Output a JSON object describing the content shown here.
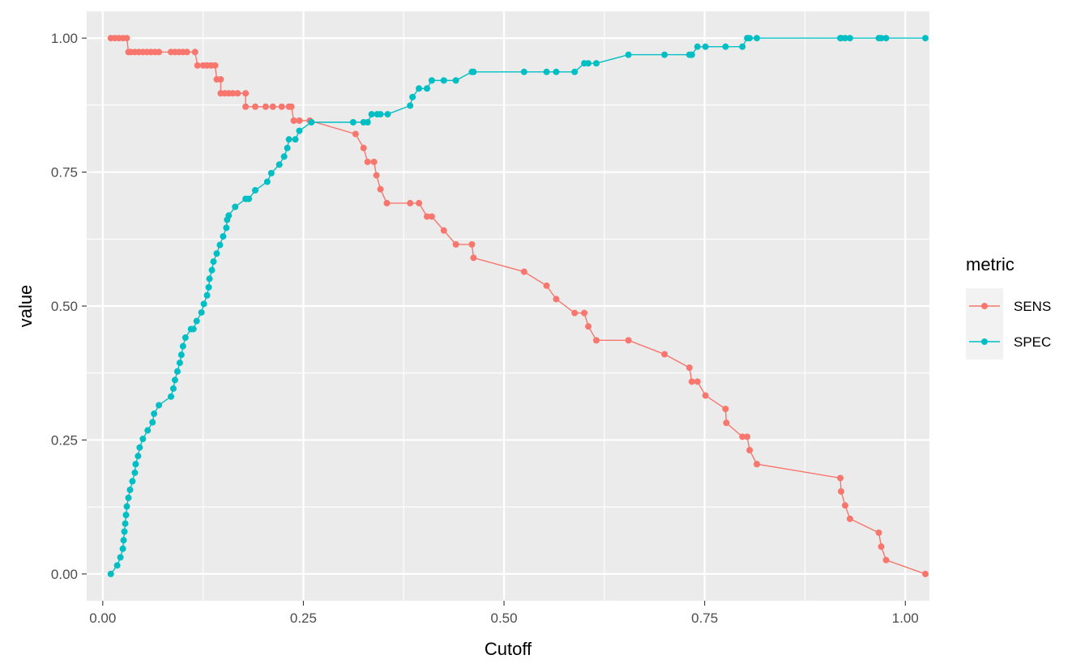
{
  "chart_data": {
    "type": "line",
    "xlabel": "Cutoff",
    "ylabel": "value",
    "xlim": [
      -0.02,
      1.03
    ],
    "ylim": [
      -0.05,
      1.05
    ],
    "x_ticks": [
      0.0,
      0.25,
      0.5,
      0.75,
      1.0
    ],
    "x_tick_labels": [
      "0.00",
      "0.25",
      "0.50",
      "0.75",
      "1.00"
    ],
    "y_ticks": [
      0.0,
      0.25,
      0.5,
      0.75,
      1.0
    ],
    "y_tick_labels": [
      "0.00",
      "0.25",
      "0.50",
      "0.75",
      "1.00"
    ],
    "grid": true,
    "legend": {
      "title": "metric",
      "position": "right"
    },
    "series": [
      {
        "name": "SENS",
        "color": "#F8766D",
        "points": [
          [
            0.01,
            1.0
          ],
          [
            0.015,
            1.0
          ],
          [
            0.02,
            1.0
          ],
          [
            0.025,
            1.0
          ],
          [
            0.03,
            1.0
          ],
          [
            0.032,
            0.974
          ],
          [
            0.035,
            0.974
          ],
          [
            0.04,
            0.974
          ],
          [
            0.045,
            0.974
          ],
          [
            0.05,
            0.974
          ],
          [
            0.055,
            0.974
          ],
          [
            0.06,
            0.974
          ],
          [
            0.065,
            0.974
          ],
          [
            0.07,
            0.974
          ],
          [
            0.085,
            0.974
          ],
          [
            0.09,
            0.974
          ],
          [
            0.095,
            0.974
          ],
          [
            0.1,
            0.974
          ],
          [
            0.105,
            0.974
          ],
          [
            0.115,
            0.974
          ],
          [
            0.118,
            0.949
          ],
          [
            0.125,
            0.949
          ],
          [
            0.13,
            0.949
          ],
          [
            0.135,
            0.949
          ],
          [
            0.14,
            0.949
          ],
          [
            0.142,
            0.923
          ],
          [
            0.147,
            0.923
          ],
          [
            0.147,
            0.897
          ],
          [
            0.152,
            0.897
          ],
          [
            0.157,
            0.897
          ],
          [
            0.162,
            0.897
          ],
          [
            0.168,
            0.897
          ],
          [
            0.178,
            0.897
          ],
          [
            0.178,
            0.872
          ],
          [
            0.19,
            0.872
          ],
          [
            0.203,
            0.872
          ],
          [
            0.212,
            0.872
          ],
          [
            0.223,
            0.872
          ],
          [
            0.232,
            0.872
          ],
          [
            0.235,
            0.872
          ],
          [
            0.238,
            0.846
          ],
          [
            0.245,
            0.846
          ],
          [
            0.258,
            0.846
          ],
          [
            0.315,
            0.821
          ],
          [
            0.325,
            0.795
          ],
          [
            0.33,
            0.769
          ],
          [
            0.338,
            0.769
          ],
          [
            0.341,
            0.744
          ],
          [
            0.346,
            0.718
          ],
          [
            0.354,
            0.692
          ],
          [
            0.383,
            0.692
          ],
          [
            0.394,
            0.692
          ],
          [
            0.404,
            0.667
          ],
          [
            0.41,
            0.667
          ],
          [
            0.425,
            0.641
          ],
          [
            0.44,
            0.615
          ],
          [
            0.46,
            0.615
          ],
          [
            0.462,
            0.59
          ],
          [
            0.525,
            0.564
          ],
          [
            0.553,
            0.538
          ],
          [
            0.565,
            0.513
          ],
          [
            0.588,
            0.487
          ],
          [
            0.6,
            0.487
          ],
          [
            0.605,
            0.462
          ],
          [
            0.615,
            0.436
          ],
          [
            0.655,
            0.436
          ],
          [
            0.7,
            0.41
          ],
          [
            0.731,
            0.385
          ],
          [
            0.734,
            0.359
          ],
          [
            0.741,
            0.359
          ],
          [
            0.751,
            0.333
          ],
          [
            0.776,
            0.308
          ],
          [
            0.777,
            0.282
          ],
          [
            0.797,
            0.256
          ],
          [
            0.803,
            0.256
          ],
          [
            0.806,
            0.231
          ],
          [
            0.815,
            0.205
          ],
          [
            0.919,
            0.179
          ],
          [
            0.92,
            0.154
          ],
          [
            0.925,
            0.128
          ],
          [
            0.931,
            0.103
          ],
          [
            0.967,
            0.077
          ],
          [
            0.97,
            0.051
          ],
          [
            0.976,
            0.026
          ],
          [
            1.025,
            0.0
          ]
        ]
      },
      {
        "name": "SPEC",
        "color": "#00BFC4",
        "points": [
          [
            0.01,
            0.0
          ],
          [
            0.018,
            0.016
          ],
          [
            0.022,
            0.031
          ],
          [
            0.025,
            0.047
          ],
          [
            0.026,
            0.063
          ],
          [
            0.027,
            0.079
          ],
          [
            0.028,
            0.094
          ],
          [
            0.029,
            0.11
          ],
          [
            0.03,
            0.126
          ],
          [
            0.032,
            0.142
          ],
          [
            0.034,
            0.157
          ],
          [
            0.037,
            0.173
          ],
          [
            0.04,
            0.189
          ],
          [
            0.041,
            0.205
          ],
          [
            0.044,
            0.22
          ],
          [
            0.046,
            0.236
          ],
          [
            0.05,
            0.252
          ],
          [
            0.056,
            0.268
          ],
          [
            0.062,
            0.283
          ],
          [
            0.064,
            0.299
          ],
          [
            0.07,
            0.315
          ],
          [
            0.085,
            0.331
          ],
          [
            0.088,
            0.346
          ],
          [
            0.09,
            0.362
          ],
          [
            0.093,
            0.378
          ],
          [
            0.096,
            0.394
          ],
          [
            0.098,
            0.409
          ],
          [
            0.1,
            0.425
          ],
          [
            0.103,
            0.441
          ],
          [
            0.11,
            0.457
          ],
          [
            0.113,
            0.457
          ],
          [
            0.117,
            0.472
          ],
          [
            0.123,
            0.488
          ],
          [
            0.126,
            0.504
          ],
          [
            0.13,
            0.52
          ],
          [
            0.132,
            0.535
          ],
          [
            0.133,
            0.551
          ],
          [
            0.136,
            0.567
          ],
          [
            0.138,
            0.583
          ],
          [
            0.142,
            0.598
          ],
          [
            0.146,
            0.614
          ],
          [
            0.15,
            0.63
          ],
          [
            0.154,
            0.646
          ],
          [
            0.155,
            0.661
          ],
          [
            0.157,
            0.669
          ],
          [
            0.165,
            0.685
          ],
          [
            0.178,
            0.7
          ],
          [
            0.182,
            0.7
          ],
          [
            0.19,
            0.716
          ],
          [
            0.205,
            0.732
          ],
          [
            0.21,
            0.748
          ],
          [
            0.22,
            0.764
          ],
          [
            0.226,
            0.779
          ],
          [
            0.23,
            0.795
          ],
          [
            0.232,
            0.811
          ],
          [
            0.24,
            0.811
          ],
          [
            0.245,
            0.827
          ],
          [
            0.26,
            0.843
          ],
          [
            0.312,
            0.843
          ],
          [
            0.325,
            0.843
          ],
          [
            0.33,
            0.843
          ],
          [
            0.335,
            0.858
          ],
          [
            0.342,
            0.858
          ],
          [
            0.346,
            0.858
          ],
          [
            0.355,
            0.858
          ],
          [
            0.383,
            0.874
          ],
          [
            0.386,
            0.89
          ],
          [
            0.394,
            0.906
          ],
          [
            0.404,
            0.906
          ],
          [
            0.41,
            0.921
          ],
          [
            0.425,
            0.921
          ],
          [
            0.44,
            0.921
          ],
          [
            0.46,
            0.937
          ],
          [
            0.462,
            0.937
          ],
          [
            0.525,
            0.937
          ],
          [
            0.553,
            0.937
          ],
          [
            0.565,
            0.937
          ],
          [
            0.588,
            0.937
          ],
          [
            0.6,
            0.953
          ],
          [
            0.605,
            0.953
          ],
          [
            0.615,
            0.953
          ],
          [
            0.655,
            0.969
          ],
          [
            0.7,
            0.969
          ],
          [
            0.731,
            0.969
          ],
          [
            0.734,
            0.969
          ],
          [
            0.741,
            0.984
          ],
          [
            0.751,
            0.984
          ],
          [
            0.776,
            0.984
          ],
          [
            0.797,
            0.984
          ],
          [
            0.803,
            1.0
          ],
          [
            0.806,
            1.0
          ],
          [
            0.815,
            1.0
          ],
          [
            0.919,
            1.0
          ],
          [
            0.92,
            1.0
          ],
          [
            0.925,
            1.0
          ],
          [
            0.931,
            1.0
          ],
          [
            0.967,
            1.0
          ],
          [
            0.97,
            1.0
          ],
          [
            0.976,
            1.0
          ],
          [
            1.025,
            1.0
          ]
        ]
      }
    ]
  }
}
